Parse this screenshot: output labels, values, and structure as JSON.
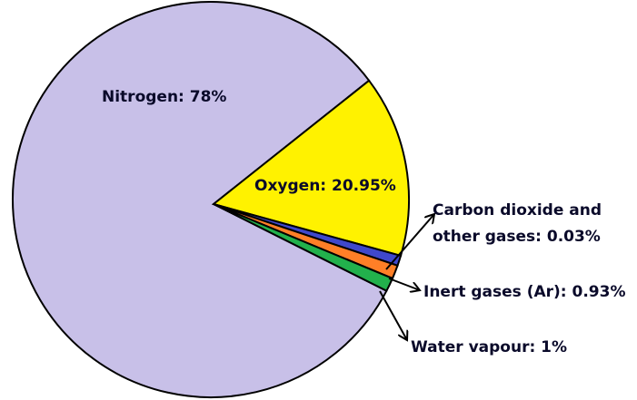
{
  "chart_data": {
    "type": "pie",
    "slices": [
      {
        "label": "Nitrogen: 78%",
        "name": "Nitrogen",
        "value": 78,
        "color": "#C8C0E8"
      },
      {
        "label": "Oxygen: 20.95%",
        "name": "Oxygen",
        "value": 20.95,
        "color": "#FFF200"
      },
      {
        "label_lines": [
          "Carbon dioxide and",
          "other gases: 0.03%"
        ],
        "name": "Carbon dioxide and other gases",
        "value": 0.03,
        "color": "#3F48CC"
      },
      {
        "label": "Inert gases (Ar): 0.93%",
        "name": "Inert gases (Ar)",
        "value": 0.93,
        "color": "#FF7F27"
      },
      {
        "label": "Water vapour: 1%",
        "name": "Water vapour",
        "value": 1,
        "color": "#22B14C"
      }
    ]
  }
}
